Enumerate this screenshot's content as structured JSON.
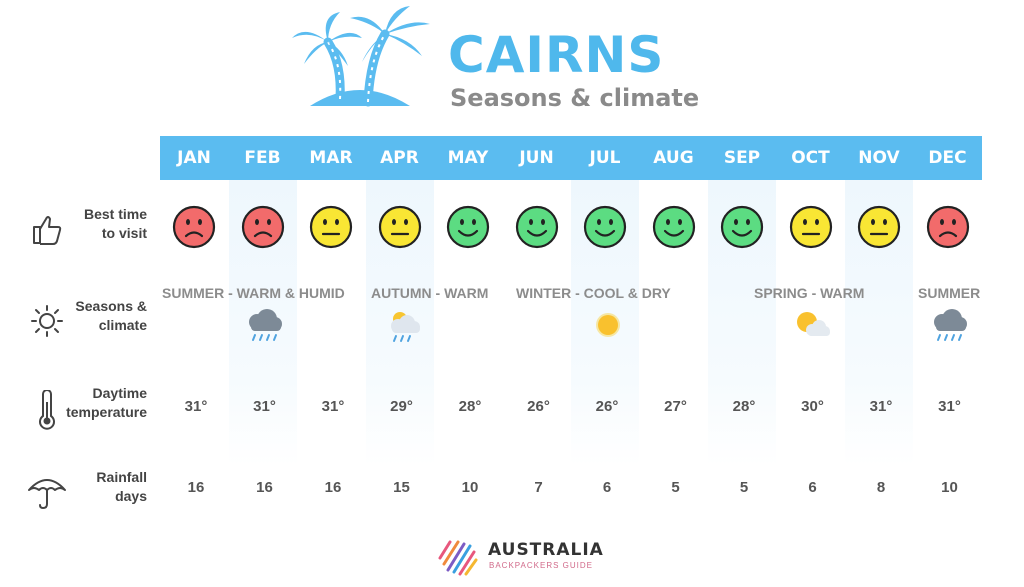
{
  "header": {
    "title": "CAIRNS",
    "subtitle": "Seasons & climate"
  },
  "rows": {
    "best_time": {
      "label_1": "Best time",
      "label_2": "to visit"
    },
    "seasons": {
      "label_1": "Seasons &",
      "label_2": "climate"
    },
    "temperature": {
      "label_1": "Daytime",
      "label_2": "temperature"
    },
    "rainfall": {
      "label_1": "Rainfall",
      "label_2": "days"
    }
  },
  "months": [
    "JAN",
    "FEB",
    "MAR",
    "APR",
    "MAY",
    "JUN",
    "JUL",
    "AUG",
    "SEP",
    "OCT",
    "NOV",
    "DEC"
  ],
  "ratings": [
    "bad",
    "bad",
    "neutral",
    "neutral",
    "good",
    "good",
    "good",
    "good",
    "good",
    "neutral",
    "neutral",
    "bad"
  ],
  "rating_colors": {
    "bad": "#f26b6b",
    "neutral": "#f9e634",
    "good": "#5cdc82"
  },
  "seasons": [
    {
      "label": "SUMMER - WARM & HUMID",
      "icon": "rain-cloud-icon"
    },
    {
      "label": "AUTUMN - WARM",
      "icon": "sun-cloud-rain-icon"
    },
    {
      "label": "WINTER - COOL & DRY",
      "icon": "sun-icon"
    },
    {
      "label": "SPRING - WARM",
      "icon": "sun-behind-cloud-icon"
    },
    {
      "label": "SUMMER",
      "icon": "rain-cloud-icon"
    }
  ],
  "temperatures": [
    "31°",
    "31°",
    "31°",
    "29°",
    "28°",
    "26°",
    "26°",
    "27°",
    "28°",
    "30°",
    "31°",
    "31°"
  ],
  "rainfall_days": [
    "16",
    "16",
    "16",
    "15",
    "10",
    "7",
    "6",
    "5",
    "5",
    "6",
    "8",
    "10"
  ],
  "colors": {
    "accent": "#5bbcf0",
    "title": "#4fb8ec",
    "subtitle": "#8a8a8a"
  },
  "logo": {
    "line1": "AUSTRALIA",
    "line2": "BACKPACKERS GUIDE"
  }
}
